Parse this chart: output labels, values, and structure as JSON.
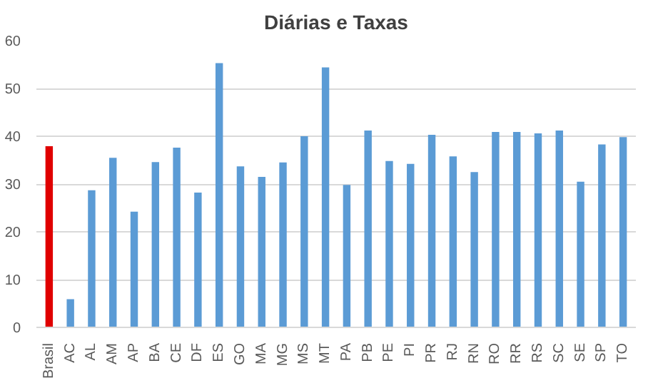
{
  "chart_data": {
    "type": "bar",
    "title": "Diárias e Taxas",
    "categories": [
      "Brasil",
      "AC",
      "AL",
      "AM",
      "AP",
      "BA",
      "CE",
      "DF",
      "ES",
      "GO",
      "MA",
      "MG",
      "MS",
      "MT",
      "PA",
      "PB",
      "PE",
      "PI",
      "PR",
      "RJ",
      "RN",
      "RO",
      "RR",
      "RS",
      "SC",
      "SE",
      "SP",
      "TO"
    ],
    "values": [
      37.9,
      5.9,
      28.7,
      35.5,
      24.2,
      34.6,
      37.6,
      28.2,
      55.3,
      33.7,
      31.5,
      34.5,
      40.0,
      54.4,
      29.8,
      41.2,
      34.8,
      34.2,
      40.3,
      35.8,
      32.5,
      40.9,
      40.9,
      40.6,
      41.2,
      30.5,
      38.3,
      39.8
    ],
    "colors": [
      "#e00000",
      "#5b9bd5",
      "#5b9bd5",
      "#5b9bd5",
      "#5b9bd5",
      "#5b9bd5",
      "#5b9bd5",
      "#5b9bd5",
      "#5b9bd5",
      "#5b9bd5",
      "#5b9bd5",
      "#5b9bd5",
      "#5b9bd5",
      "#5b9bd5",
      "#5b9bd5",
      "#5b9bd5",
      "#5b9bd5",
      "#5b9bd5",
      "#5b9bd5",
      "#5b9bd5",
      "#5b9bd5",
      "#5b9bd5",
      "#5b9bd5",
      "#5b9bd5",
      "#5b9bd5",
      "#5b9bd5",
      "#5b9bd5",
      "#5b9bd5"
    ],
    "ylim": [
      0,
      60
    ],
    "yticks": [
      0,
      10,
      20,
      30,
      40,
      50,
      60
    ],
    "grid": "y"
  }
}
